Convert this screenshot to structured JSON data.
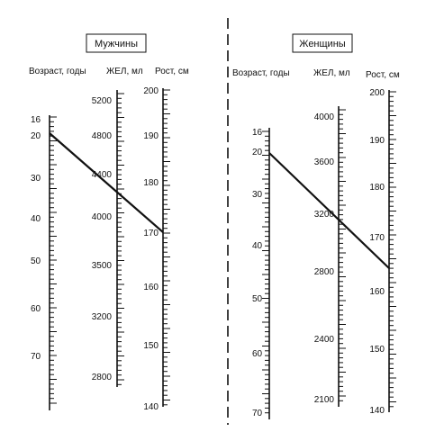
{
  "panels": [
    {
      "id": "men",
      "title": "Мужчины",
      "scales": [
        {
          "key": "age",
          "header": "Возраст, годы",
          "labels": [
            "16",
            "20",
            "30",
            "40",
            "50",
            "60",
            "70"
          ],
          "label_side": "left"
        },
        {
          "key": "vc",
          "header": "ЖЕЛ, мл",
          "labels": [
            "5200",
            "4800",
            "4400",
            "4000",
            "3500",
            "3200",
            "2800"
          ],
          "label_side": "left"
        },
        {
          "key": "height",
          "header": "Рост, см",
          "labels": [
            "200",
            "190",
            "180",
            "170",
            "160",
            "150",
            "140"
          ],
          "label_side": "left"
        }
      ],
      "example": {
        "age": 20,
        "vc": 4200,
        "height": 171
      }
    },
    {
      "id": "women",
      "title": "Женщины",
      "scales": [
        {
          "key": "age",
          "header": "Возраст, годы",
          "labels": [
            "16",
            "20",
            "30",
            "40",
            "50",
            "60",
            "70"
          ],
          "label_side": "left"
        },
        {
          "key": "vc",
          "header": "ЖЕЛ, мл",
          "labels": [
            "4000",
            "3600",
            "3200",
            "2800",
            "2400",
            "2100"
          ],
          "label_side": "left"
        },
        {
          "key": "height",
          "header": "Рост, см",
          "labels": [
            "200",
            "190",
            "180",
            "170",
            "160",
            "150",
            "140"
          ],
          "label_side": "left"
        }
      ],
      "example": {
        "age": 20,
        "vc": 3150,
        "height": 165
      }
    }
  ]
}
